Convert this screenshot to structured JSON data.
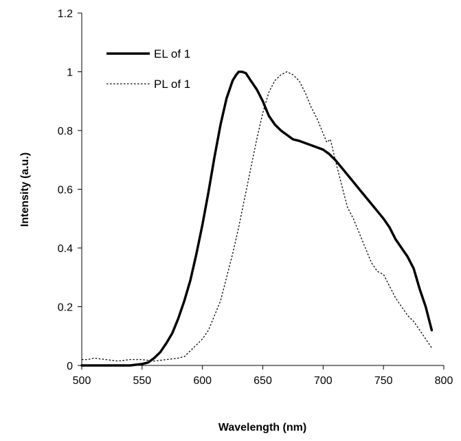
{
  "chart_data": {
    "type": "line",
    "title": "",
    "xlabel": "Wavelength (nm)",
    "ylabel": "Intensity (a.u.)",
    "xlim": [
      500,
      800
    ],
    "ylim": [
      0,
      1.2
    ],
    "x_ticks": [
      "500",
      "550",
      "600",
      "650",
      "700",
      "750",
      "800"
    ],
    "y_ticks": [
      "0",
      "0.2",
      "0.4",
      "0.6",
      "0.8",
      "1",
      "1.2"
    ],
    "grid": false,
    "legend_position": "top-left",
    "series": [
      {
        "name": "EL of 1",
        "style": "solid",
        "color": "#000000",
        "x": [
          500,
          520,
          540,
          550,
          555,
          560,
          565,
          570,
          575,
          580,
          585,
          590,
          595,
          600,
          605,
          610,
          615,
          620,
          625,
          628,
          630,
          633,
          636,
          640,
          645,
          650,
          655,
          660,
          665,
          670,
          675,
          680,
          690,
          700,
          705,
          710,
          715,
          720,
          730,
          740,
          750,
          755,
          760,
          765,
          770,
          775,
          780,
          785,
          790
        ],
        "y": [
          0.0,
          0.0,
          0.0,
          0.005,
          0.01,
          0.025,
          0.045,
          0.075,
          0.11,
          0.16,
          0.22,
          0.29,
          0.38,
          0.48,
          0.59,
          0.71,
          0.82,
          0.91,
          0.97,
          0.99,
          1.0,
          1.0,
          0.995,
          0.97,
          0.94,
          0.9,
          0.85,
          0.82,
          0.8,
          0.785,
          0.77,
          0.765,
          0.75,
          0.735,
          0.72,
          0.7,
          0.675,
          0.65,
          0.6,
          0.55,
          0.5,
          0.47,
          0.43,
          0.4,
          0.37,
          0.33,
          0.26,
          0.2,
          0.12
        ]
      },
      {
        "name": "PL of 1",
        "style": "dotted",
        "color": "#000000",
        "x": [
          500,
          505,
          510,
          520,
          530,
          540,
          550,
          560,
          570,
          580,
          585,
          590,
          595,
          600,
          605,
          610,
          615,
          620,
          625,
          630,
          635,
          640,
          645,
          650,
          655,
          660,
          665,
          670,
          675,
          680,
          685,
          690,
          695,
          700,
          703,
          706,
          710,
          715,
          720,
          725,
          730,
          735,
          740,
          745,
          750,
          755,
          760,
          765,
          770,
          775,
          780,
          785,
          790
        ],
        "y": [
          0.02,
          0.02,
          0.025,
          0.02,
          0.015,
          0.02,
          0.02,
          0.015,
          0.02,
          0.025,
          0.03,
          0.05,
          0.07,
          0.09,
          0.12,
          0.17,
          0.22,
          0.3,
          0.38,
          0.47,
          0.57,
          0.67,
          0.77,
          0.86,
          0.93,
          0.97,
          0.99,
          1.0,
          0.99,
          0.97,
          0.93,
          0.88,
          0.84,
          0.79,
          0.76,
          0.77,
          0.7,
          0.62,
          0.54,
          0.5,
          0.45,
          0.4,
          0.35,
          0.32,
          0.31,
          0.27,
          0.23,
          0.2,
          0.17,
          0.15,
          0.12,
          0.09,
          0.06
        ]
      }
    ]
  }
}
